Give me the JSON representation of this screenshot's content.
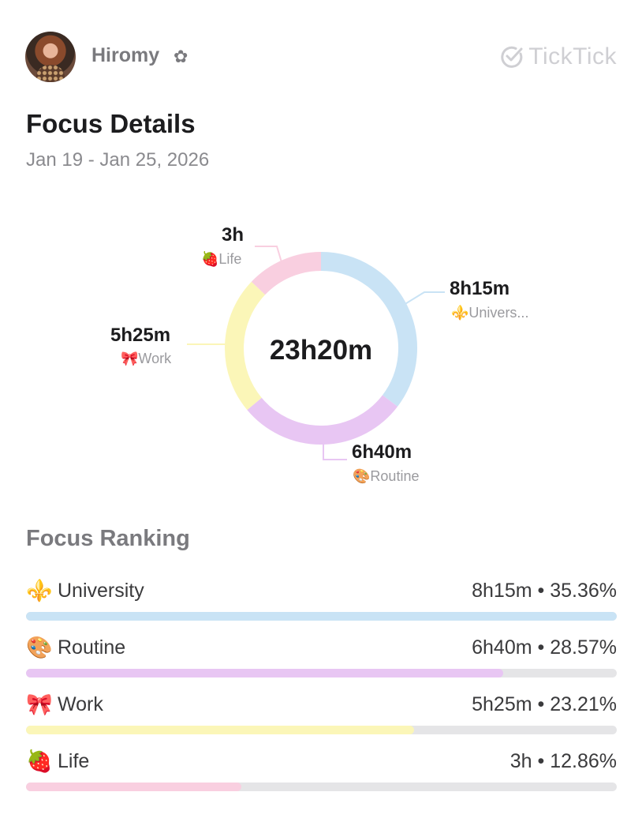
{
  "user": {
    "name": "Hiromy",
    "badge_icon": "flower-icon"
  },
  "brand": {
    "name": "TickTick",
    "icon": "check-circle-icon"
  },
  "page": {
    "title": "Focus Details",
    "date_range": "Jan 19 - Jan 25, 2026"
  },
  "chart_data": {
    "type": "pie",
    "total_label": "23h20m",
    "slices": [
      {
        "name": "Univers...",
        "value_label": "8h15m",
        "minutes": 495,
        "emoji": "⚜️",
        "color": "#c9e3f5"
      },
      {
        "name": "Routine",
        "value_label": "6h40m",
        "minutes": 400,
        "emoji": "🎨",
        "color": "#e8c6f3"
      },
      {
        "name": "Work",
        "value_label": "5h25m",
        "minutes": 325,
        "emoji": "🎀",
        "color": "#fbf6b8"
      },
      {
        "name": "Life",
        "value_label": "3h",
        "minutes": 180,
        "emoji": "🍓",
        "color": "#f9cfe0"
      }
    ]
  },
  "ranking": {
    "title": "Focus Ranking",
    "items": [
      {
        "emoji": "⚜️",
        "name": "University",
        "stat": "8h15m • 35.36%",
        "fraction": 1.0,
        "color": "#c9e3f5"
      },
      {
        "emoji": "🎨",
        "name": "Routine",
        "stat": "6h40m • 28.57%",
        "fraction": 0.808,
        "color": "#e8c6f3"
      },
      {
        "emoji": "🎀",
        "name": "Work",
        "stat": "5h25m • 23.21%",
        "fraction": 0.657,
        "color": "#fbf6b8"
      },
      {
        "emoji": "🍓",
        "name": "Life",
        "stat": "3h • 12.86%",
        "fraction": 0.364,
        "color": "#f9cfe0"
      }
    ]
  }
}
